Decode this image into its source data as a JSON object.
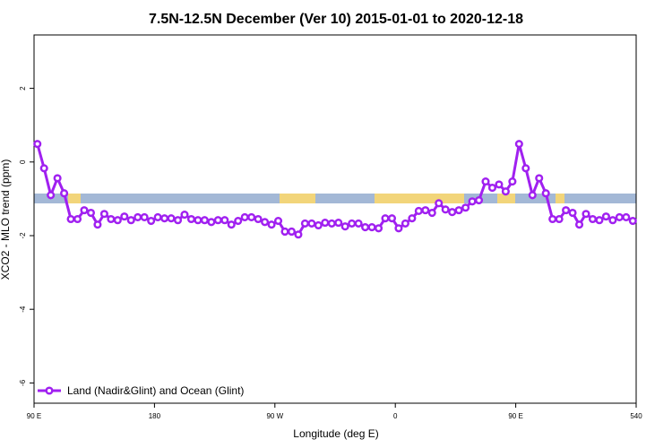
{
  "chart_data": {
    "type": "line",
    "title": "7.5N-12.5N December (Ver 10)   2015-01-01 to 2020-12-18",
    "x_label": "Longitude (deg E)",
    "y_label": "XCO2 - MLO trend (ppm)",
    "x": [
      92.5,
      97.5,
      102.5,
      107.5,
      112.5,
      117.5,
      122.5,
      127.5,
      132.5,
      137.5,
      142.5,
      147.5,
      152.5,
      157.5,
      162.5,
      167.5,
      172.5,
      177.5,
      182.5,
      187.5,
      192.5,
      197.5,
      202.5,
      207.5,
      212.5,
      217.5,
      222.5,
      227.5,
      232.5,
      237.5,
      242.5,
      247.5,
      252.5,
      257.5,
      262.5,
      267.5,
      272.5,
      277.5,
      282.5,
      287.5,
      292.5,
      297.5,
      302.5,
      307.5,
      312.5,
      317.5,
      322.5,
      327.5,
      332.5,
      337.5,
      342.5,
      347.5,
      352.5,
      357.5,
      362.5,
      367.5,
      372.5,
      377.5,
      382.5,
      387.5,
      392.5,
      397.5,
      402.5,
      407.5,
      412.5,
      417.5,
      422.5,
      427.5,
      432.5,
      437.5,
      442.5,
      447.5,
      452.5,
      457.5,
      462.5,
      467.5,
      472.5,
      477.5,
      482.5,
      487.5,
      492.5,
      497.5,
      502.5,
      507.5,
      512.5,
      517.5,
      522.5,
      527.5,
      532.5,
      537.5
    ],
    "series": [
      {
        "name": "Land (Nadir&Glint) and Ocean (Glint)",
        "color": "#a020f0",
        "values": [
          0.49,
          -0.17,
          -0.9,
          -0.44,
          -0.85,
          -1.55,
          -1.55,
          -1.31,
          -1.38,
          -1.7,
          -1.41,
          -1.55,
          -1.58,
          -1.48,
          -1.58,
          -1.5,
          -1.5,
          -1.6,
          -1.5,
          -1.53,
          -1.53,
          -1.58,
          -1.43,
          -1.55,
          -1.58,
          -1.58,
          -1.63,
          -1.58,
          -1.58,
          -1.7,
          -1.6,
          -1.5,
          -1.5,
          -1.55,
          -1.63,
          -1.7,
          -1.6,
          -1.89,
          -1.89,
          -1.97,
          -1.67,
          -1.67,
          -1.72,
          -1.65,
          -1.67,
          -1.65,
          -1.75,
          -1.67,
          -1.67,
          -1.77,
          -1.77,
          -1.8,
          -1.53,
          -1.53,
          -1.8,
          -1.67,
          -1.53,
          -1.33,
          -1.31,
          -1.38,
          -1.12,
          -1.29,
          -1.36,
          -1.31,
          -1.24,
          -1.07,
          -1.04,
          -0.53,
          -0.7,
          -0.61,
          -0.8,
          -0.53,
          0.49,
          -0.17,
          -0.9,
          -0.44,
          -0.85,
          -1.55,
          -1.55,
          -1.31,
          -1.38,
          -1.7,
          -1.41,
          -1.55,
          -1.58,
          -1.48,
          -1.58,
          -1.5,
          -1.5,
          -1.6
        ]
      }
    ],
    "xlim": [
      90,
      540
    ],
    "xticks": [
      {
        "value": 90,
        "label": "90 E"
      },
      180,
      {
        "value": 270,
        "label": "90 W"
      },
      {
        "value": 360,
        "label": "0"
      },
      {
        "value": 450,
        "label": "90 E"
      },
      540
    ],
    "ylim": [
      -6.55,
      3.45
    ],
    "yticks": [
      2,
      0,
      -2,
      -4,
      -6
    ],
    "legend": "bottom-left"
  }
}
